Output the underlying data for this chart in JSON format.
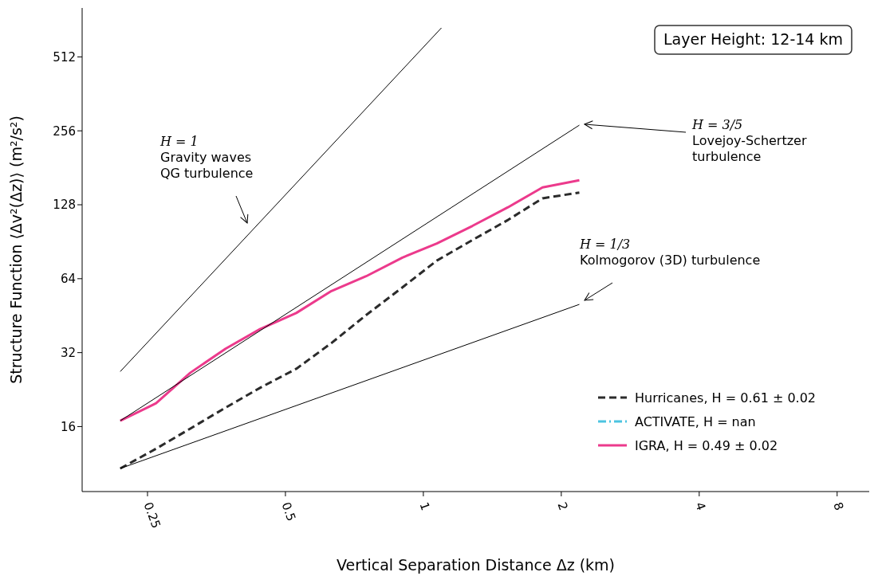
{
  "chart_data": {
    "type": "line",
    "xlabel": "Vertical Separation Distance Δz (km)",
    "ylabel": "Structure Function ⟨Δv²(Δz)⟩ (m²/s²)",
    "log": "xy",
    "xlim": [
      0.18,
      9.4
    ],
    "xticks": [
      0.25,
      0.5,
      1,
      2,
      4,
      8
    ],
    "ylim": [
      8.7,
      810
    ],
    "yticks": [
      16,
      32,
      64,
      128,
      256,
      512
    ],
    "legend": "bottom right",
    "series": [
      {
        "name": "Hurricanes, H = 0.61 ± 0.02",
        "color": "#2b2b2b",
        "line_style": "dashed",
        "x": [
          0.218,
          0.261,
          0.31,
          0.37,
          0.44,
          0.528,
          0.63,
          0.75,
          0.9,
          1.07,
          1.28,
          1.53,
          1.82,
          2.19
        ],
        "values": [
          10.8,
          13.0,
          15.7,
          19.1,
          23.0,
          27.5,
          35,
          45.5,
          59,
          75.8,
          92,
          111,
          136,
          143.5
        ]
      },
      {
        "name": "ACTIVATE, H = nan",
        "color": "#4cc4e0",
        "line_style": "dashdot"
      },
      {
        "name": "IGRA, H = 0.49 ± 0.02",
        "color": "#ec3a8c",
        "line_style": "solid",
        "x": [
          0.218,
          0.261,
          0.31,
          0.37,
          0.44,
          0.528,
          0.63,
          0.75,
          0.9,
          1.07,
          1.28,
          1.53,
          1.82,
          2.19
        ],
        "values": [
          16.9,
          19.9,
          26.5,
          33.2,
          39.9,
          46.4,
          57,
          65.5,
          78,
          89,
          105,
          125,
          150.6,
          161
        ]
      },
      {
        "color": "#000000",
        "line_style": "solid",
        "x": [
          0.218,
          1.095
        ],
        "values": [
          26.8,
          672
        ]
      },
      {
        "color": "#000000",
        "line_style": "solid",
        "x": [
          0.218,
          2.19
        ],
        "values": [
          16.9,
          270
        ]
      },
      {
        "color": "#000000",
        "line_style": "solid",
        "x": [
          0.218,
          2.19
        ],
        "values": [
          10.8,
          50.3
        ]
      }
    ],
    "annotations": [
      "Layer Height: 12-14 km",
      "H = 1\nGravity waves\nQG turbulence",
      "H = 3/5\nLovejoy-Schertzer\nturbulence",
      "H = 1/3\nKolmogorov (3D) turbulence"
    ]
  }
}
